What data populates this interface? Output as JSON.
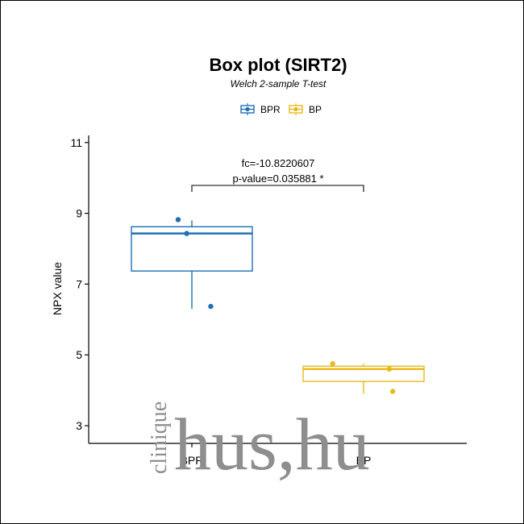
{
  "chart_data": {
    "type": "box",
    "title": "Box plot (SIRT2)",
    "subtitle": "Welch 2-sample T-test",
    "xlabel": "",
    "ylabel": "NPX value",
    "ylim": [
      2.5,
      11.2
    ],
    "yticks": [
      3,
      5,
      7,
      9,
      11
    ],
    "categories": [
      "BPR",
      "BP"
    ],
    "legend": {
      "position": "top",
      "entries": [
        "BPR",
        "BP"
      ]
    },
    "colors": {
      "BPR": "#1f6fb4",
      "BP": "#e8b919"
    },
    "grid": false,
    "series": [
      {
        "name": "BPR",
        "whisker_low": 6.3,
        "q1": 7.37,
        "median": 8.43,
        "q3": 8.62,
        "whisker_high": 8.8,
        "points": [
          {
            "y": 8.82,
            "jitter": -0.08
          },
          {
            "y": 8.43,
            "jitter": -0.03
          },
          {
            "y": 6.37,
            "jitter": 0.11
          }
        ]
      },
      {
        "name": "BP",
        "whisker_low": 3.9,
        "q1": 4.25,
        "median": 4.6,
        "q3": 4.68,
        "whisker_high": 4.75,
        "points": [
          {
            "y": 4.75,
            "jitter": -0.18
          },
          {
            "y": 4.6,
            "jitter": 0.15
          },
          {
            "y": 3.97,
            "jitter": 0.17
          }
        ]
      }
    ],
    "annotation": {
      "line1": "fc=-10.8220607",
      "line2": "p-value=0.035881 *"
    }
  },
  "watermark": {
    "small": "clinique",
    "big": "hus,hu"
  }
}
